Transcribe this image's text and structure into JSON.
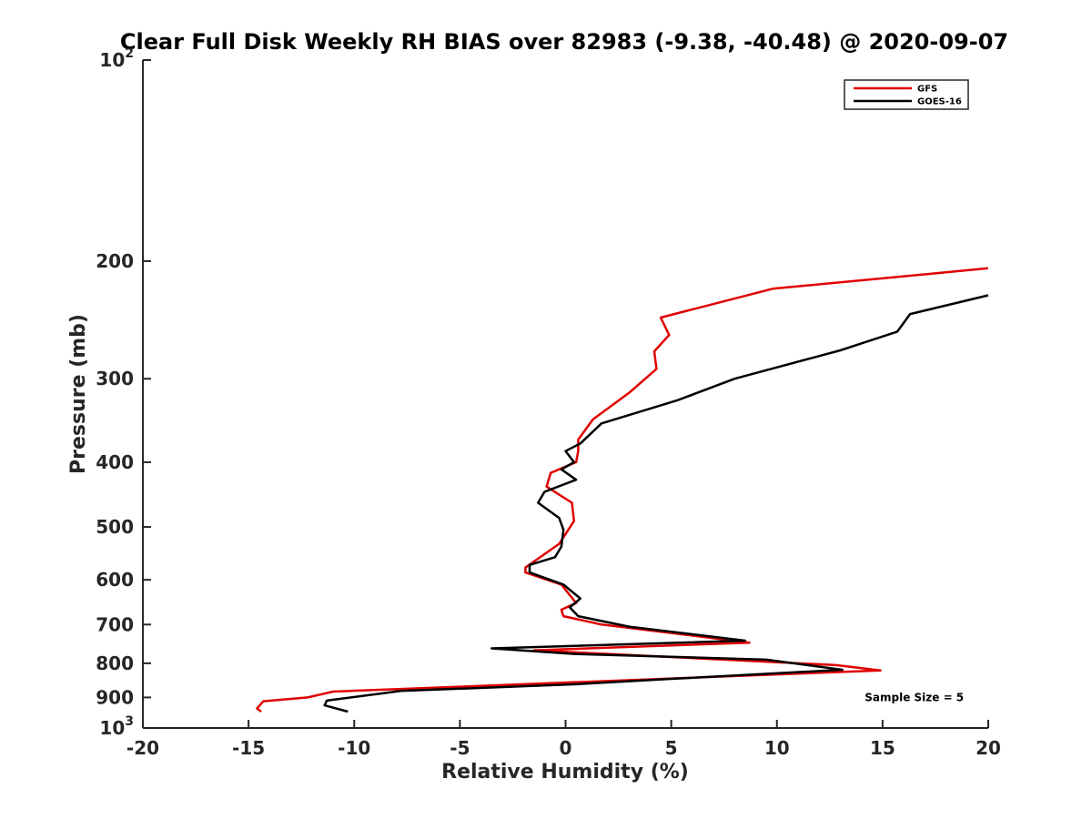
{
  "chart_data": {
    "type": "line",
    "title": "Clear Full Disk Weekly RH BIAS over 82983 (-9.38, -40.48) @ 2020-09-07",
    "xlabel": "Relative Humidity (%)",
    "ylabel": "Pressure (mb)",
    "xlim": [
      -20,
      20
    ],
    "ylim": [
      100,
      1000
    ],
    "yscale": "log",
    "y_reversed": true,
    "grid": false,
    "legend_position": "top-right",
    "x_ticks": [
      {
        "value": -20,
        "label": "-20"
      },
      {
        "value": -15,
        "label": "-15"
      },
      {
        "value": -10,
        "label": "-10"
      },
      {
        "value": -5,
        "label": "-5"
      },
      {
        "value": 0,
        "label": "0"
      },
      {
        "value": 5,
        "label": "5"
      },
      {
        "value": 10,
        "label": "10"
      },
      {
        "value": 15,
        "label": "15"
      },
      {
        "value": 20,
        "label": "20"
      }
    ],
    "y_ticks": [
      {
        "value": 100,
        "base": "10",
        "exp": "2"
      },
      {
        "value": 200,
        "label": "200"
      },
      {
        "value": 300,
        "label": "300"
      },
      {
        "value": 400,
        "label": "400"
      },
      {
        "value": 500,
        "label": "500"
      },
      {
        "value": 600,
        "label": "600"
      },
      {
        "value": 700,
        "label": "700"
      },
      {
        "value": 800,
        "label": "800"
      },
      {
        "value": 900,
        "label": "900"
      },
      {
        "value": 1000,
        "base": "10",
        "exp": "3"
      }
    ],
    "series": [
      {
        "name": "GFS",
        "color": "#e00000",
        "x": [
          20,
          9.8,
          4.5,
          4.9,
          4.2,
          4.3,
          3.0,
          1.3,
          0.6,
          0.6,
          0.5,
          -0.7,
          -0.9,
          0.3,
          0.4,
          -0.3,
          -1.9,
          -1.9,
          -0.2,
          0.5,
          -0.2,
          -0.1,
          1.7,
          8.7,
          -1.5,
          12.8,
          14.9,
          -11.0,
          -12.2,
          -14.3,
          -14.6,
          -14.4
        ],
        "y": [
          205,
          220,
          243,
          258,
          273,
          290,
          315,
          345,
          370,
          385,
          400,
          415,
          435,
          460,
          490,
          530,
          575,
          585,
          610,
          650,
          665,
          680,
          700,
          745,
          765,
          805,
          820,
          882,
          900,
          912,
          935,
          945
        ]
      },
      {
        "name": "GOES-16",
        "color": "#000000",
        "x": [
          20,
          16.3,
          15.7,
          13.0,
          8.0,
          5.3,
          1.7,
          0.7,
          0.0,
          0.4,
          -0.2,
          0.5,
          -1.0,
          -1.3,
          -0.3,
          -0.1,
          -0.2,
          -0.5,
          -1.7,
          -1.7,
          -0.1,
          0.7,
          0.2,
          0.6,
          3.0,
          8.5,
          -3.5,
          0.5,
          9.5,
          13.1,
          4.8,
          0.5,
          -7.8,
          -11.3,
          -11.4,
          -10.3
        ],
        "y": [
          225,
          240,
          255,
          272,
          300,
          323,
          350,
          375,
          385,
          400,
          410,
          425,
          443,
          460,
          485,
          505,
          535,
          555,
          570,
          585,
          610,
          640,
          660,
          680,
          705,
          740,
          760,
          775,
          790,
          818,
          845,
          860,
          880,
          910,
          925,
          945
        ]
      }
    ],
    "annotations": [
      {
        "text": "Sample Size = 5",
        "x": 16.5,
        "y": 900
      }
    ]
  }
}
